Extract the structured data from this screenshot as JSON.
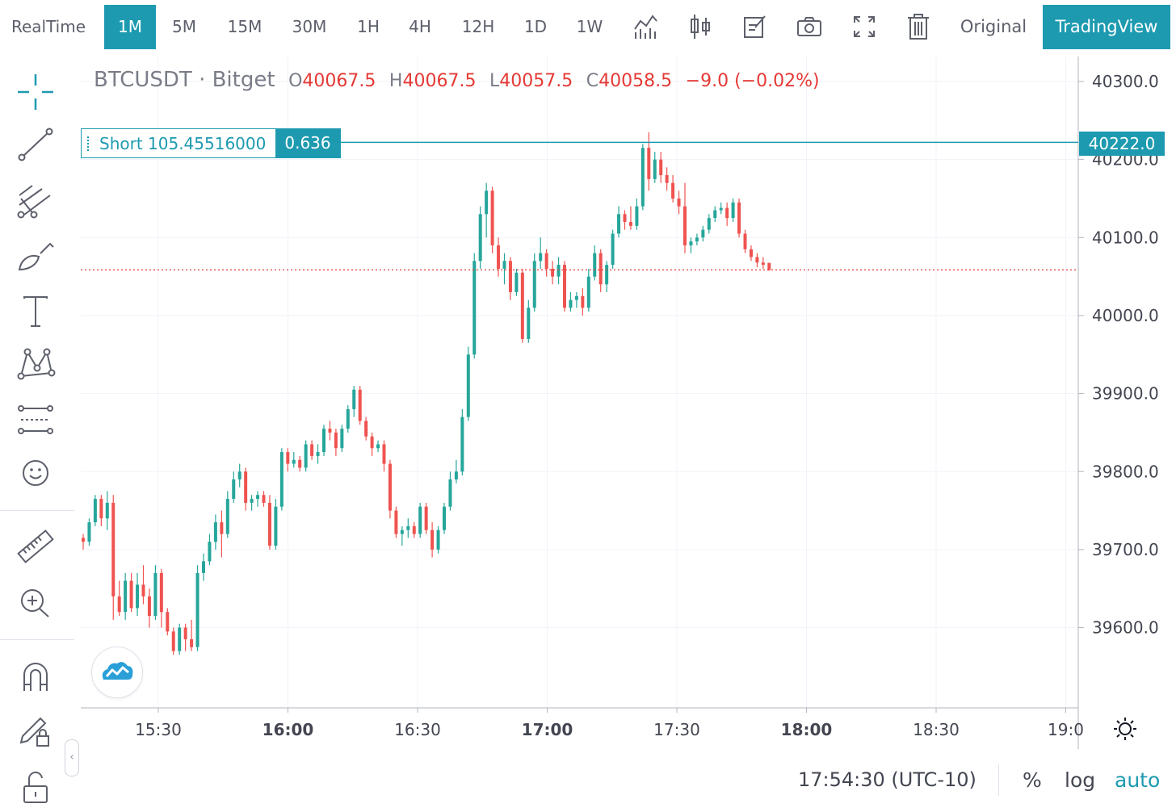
{
  "toolbar": {
    "realtime": "RealTime",
    "intervals": [
      "1M",
      "5M",
      "15M",
      "30M",
      "1H",
      "4H",
      "12H",
      "1D",
      "1W"
    ],
    "active_interval": "1M",
    "icons": [
      "indicators-icon",
      "chart-type-icon",
      "edit-icon",
      "camera-icon",
      "fullscreen-icon",
      "trash-icon"
    ],
    "original": "Original",
    "tradingview": "TradingView"
  },
  "sidebar": {
    "tools": [
      "crosshair-icon",
      "trend-line-icon",
      "fib-retracement-icon",
      "brush-icon",
      "text-icon",
      "pattern-icon",
      "prediction-icon",
      "emoji-icon",
      "ruler-icon",
      "zoom-in-icon",
      "magnet-icon",
      "lock-drawing-icon",
      "unlock-icon"
    ]
  },
  "legend": {
    "symbol": "BTCUSDT",
    "separator": "·",
    "exchange": "Bitget",
    "o_label": "O",
    "o_value": "40067.5",
    "h_label": "H",
    "h_value": "40067.5",
    "l_label": "L",
    "l_value": "40057.5",
    "c_label": "C",
    "c_value": "40058.5",
    "change": "−9.0 (−0.02%)"
  },
  "order": {
    "text": "Short 105.45516000",
    "qty": "0.636",
    "price": "40222.0"
  },
  "bottom": {
    "clock": "17:54:30 (UTC-10)",
    "percent": "%",
    "log": "log",
    "auto": "auto"
  },
  "colors": {
    "up": "#26a69a",
    "down": "#ef5350",
    "accent": "#1d9ab0",
    "last_price_line": "#e53935"
  },
  "chart_data": {
    "type": "candlestick",
    "symbol": "BTCUSDT",
    "interval": "1M",
    "y_ticks": [
      "40300.0",
      "40200.0",
      "40100.0",
      "40000.0",
      "39900.0",
      "39800.0",
      "39700.0",
      "39600.0"
    ],
    "x_ticks": [
      {
        "t": "15:30",
        "bold": false
      },
      {
        "t": "16:00",
        "bold": true
      },
      {
        "t": "16:30",
        "bold": false
      },
      {
        "t": "17:00",
        "bold": true
      },
      {
        "t": "17:30",
        "bold": false
      },
      {
        "t": "18:00",
        "bold": true
      },
      {
        "t": "18:30",
        "bold": false
      },
      {
        "t": "19:0",
        "bold": false
      }
    ],
    "x_start": "15:12",
    "ylim": [
      39490,
      40340
    ],
    "order_line_price": 40222.0,
    "last_price": 40058.5,
    "candles": [
      [
        39715,
        39720,
        39700,
        39710
      ],
      [
        39710,
        39740,
        39705,
        39735
      ],
      [
        39735,
        39770,
        39730,
        39765
      ],
      [
        39765,
        39770,
        39730,
        39740
      ],
      [
        39740,
        39775,
        39725,
        39760
      ],
      [
        39760,
        39770,
        39610,
        39640
      ],
      [
        39640,
        39660,
        39615,
        39620
      ],
      [
        39620,
        39670,
        39610,
        39660
      ],
      [
        39660,
        39670,
        39620,
        39625
      ],
      [
        39625,
        39670,
        39615,
        39655
      ],
      [
        39655,
        39680,
        39630,
        39640
      ],
      [
        39640,
        39650,
        39600,
        39615
      ],
      [
        39615,
        39680,
        39610,
        39670
      ],
      [
        39670,
        39675,
        39600,
        39620
      ],
      [
        39620,
        39625,
        39590,
        39595
      ],
      [
        39595,
        39600,
        39565,
        39570
      ],
      [
        39570,
        39605,
        39565,
        39600
      ],
      [
        39600,
        39605,
        39570,
        39585
      ],
      [
        39585,
        39610,
        39570,
        39575
      ],
      [
        39575,
        39680,
        39570,
        39670
      ],
      [
        39670,
        39695,
        39660,
        39685
      ],
      [
        39685,
        39720,
        39680,
        39710
      ],
      [
        39710,
        39745,
        39700,
        39735
      ],
      [
        39735,
        39750,
        39690,
        39720
      ],
      [
        39720,
        39775,
        39715,
        39765
      ],
      [
        39765,
        39800,
        39760,
        39790
      ],
      [
        39790,
        39810,
        39780,
        39800
      ],
      [
        39800,
        39805,
        39750,
        39760
      ],
      [
        39760,
        39770,
        39750,
        39765
      ],
      [
        39765,
        39775,
        39755,
        39770
      ],
      [
        39770,
        39775,
        39755,
        39760
      ],
      [
        39760,
        39770,
        39700,
        39705
      ],
      [
        39705,
        39765,
        39700,
        39755
      ],
      [
        39755,
        39830,
        39750,
        39825
      ],
      [
        39825,
        39830,
        39800,
        39810
      ],
      [
        39810,
        39825,
        39805,
        39815
      ],
      [
        39815,
        39820,
        39800,
        39805
      ],
      [
        39805,
        39840,
        39800,
        39835
      ],
      [
        39835,
        39840,
        39815,
        39820
      ],
      [
        39820,
        39835,
        39810,
        39825
      ],
      [
        39825,
        39860,
        39820,
        39855
      ],
      [
        39855,
        39865,
        39840,
        39850
      ],
      [
        39850,
        39855,
        39820,
        39830
      ],
      [
        39830,
        39860,
        39825,
        39855
      ],
      [
        39855,
        39885,
        39850,
        39880
      ],
      [
        39880,
        39910,
        39870,
        39905
      ],
      [
        39905,
        39910,
        39860,
        39865
      ],
      [
        39865,
        39870,
        39840,
        39845
      ],
      [
        39845,
        39850,
        39820,
        39830
      ],
      [
        39830,
        39840,
        39825,
        39835
      ],
      [
        39835,
        39840,
        39800,
        39810
      ],
      [
        39810,
        39815,
        39740,
        39750
      ],
      [
        39750,
        39755,
        39715,
        39720
      ],
      [
        39720,
        39730,
        39705,
        39725
      ],
      [
        39725,
        39740,
        39715,
        39730
      ],
      [
        39730,
        39735,
        39715,
        39720
      ],
      [
        39720,
        39760,
        39715,
        39755
      ],
      [
        39755,
        39760,
        39720,
        39725
      ],
      [
        39725,
        39735,
        39690,
        39700
      ],
      [
        39700,
        39730,
        39695,
        39725
      ],
      [
        39725,
        39760,
        39720,
        39755
      ],
      [
        39755,
        39800,
        39750,
        39790
      ],
      [
        39790,
        39815,
        39785,
        39800
      ],
      [
        39800,
        39880,
        39795,
        39870
      ],
      [
        39870,
        39960,
        39865,
        39950
      ],
      [
        39950,
        40080,
        39945,
        40070
      ],
      [
        40070,
        40140,
        40060,
        40130
      ],
      [
        40130,
        40170,
        40100,
        40160
      ],
      [
        40160,
        40165,
        40080,
        40090
      ],
      [
        40090,
        40100,
        40050,
        40060
      ],
      [
        40060,
        40080,
        40040,
        40070
      ],
      [
        40070,
        40075,
        40020,
        40030
      ],
      [
        40030,
        40060,
        40025,
        40055
      ],
      [
        40055,
        40060,
        39965,
        39970
      ],
      [
        39970,
        40020,
        39965,
        40010
      ],
      [
        40010,
        40080,
        40005,
        40070
      ],
      [
        40070,
        40100,
        40060,
        40080
      ],
      [
        40080,
        40085,
        40050,
        40060
      ],
      [
        40060,
        40070,
        40040,
        40050
      ],
      [
        40050,
        40075,
        40040,
        40065
      ],
      [
        40065,
        40070,
        40005,
        40010
      ],
      [
        40010,
        40030,
        40005,
        40020
      ],
      [
        40020,
        40030,
        40010,
        40025
      ],
      [
        40025,
        40035,
        40000,
        40010
      ],
      [
        40010,
        40060,
        40005,
        40050
      ],
      [
        40050,
        40090,
        40045,
        40080
      ],
      [
        40080,
        40085,
        40030,
        40040
      ],
      [
        40040,
        40070,
        40030,
        40065
      ],
      [
        40065,
        40110,
        40060,
        40105
      ],
      [
        40105,
        40140,
        40100,
        40130
      ],
      [
        40130,
        40135,
        40110,
        40120
      ],
      [
        40120,
        40140,
        40110,
        40115
      ],
      [
        40115,
        40150,
        40110,
        40140
      ],
      [
        40140,
        40220,
        40135,
        40215
      ],
      [
        40215,
        40235,
        40160,
        40175
      ],
      [
        40175,
        40210,
        40170,
        40200
      ],
      [
        40200,
        40210,
        40170,
        40180
      ],
      [
        40180,
        40190,
        40160,
        40170
      ],
      [
        40170,
        40180,
        40145,
        40150
      ],
      [
        40150,
        40160,
        40130,
        40140
      ],
      [
        40140,
        40170,
        40080,
        40090
      ],
      [
        40090,
        40100,
        40080,
        40095
      ],
      [
        40095,
        40105,
        40090,
        40100
      ],
      [
        40100,
        40115,
        40095,
        40110
      ],
      [
        40110,
        40130,
        40105,
        40125
      ],
      [
        40125,
        40140,
        40120,
        40135
      ],
      [
        40135,
        40145,
        40130,
        40138
      ],
      [
        40138,
        40145,
        40115,
        40125
      ],
      [
        40125,
        40150,
        40120,
        40145
      ],
      [
        40145,
        40150,
        40100,
        40105
      ],
      [
        40105,
        40110,
        40080,
        40085
      ],
      [
        40085,
        40090,
        40070,
        40075
      ],
      [
        40075,
        40080,
        40062,
        40068
      ],
      [
        40068,
        40075,
        40060,
        40065
      ],
      [
        40067.5,
        40067.5,
        40057.5,
        40058.5
      ]
    ]
  }
}
